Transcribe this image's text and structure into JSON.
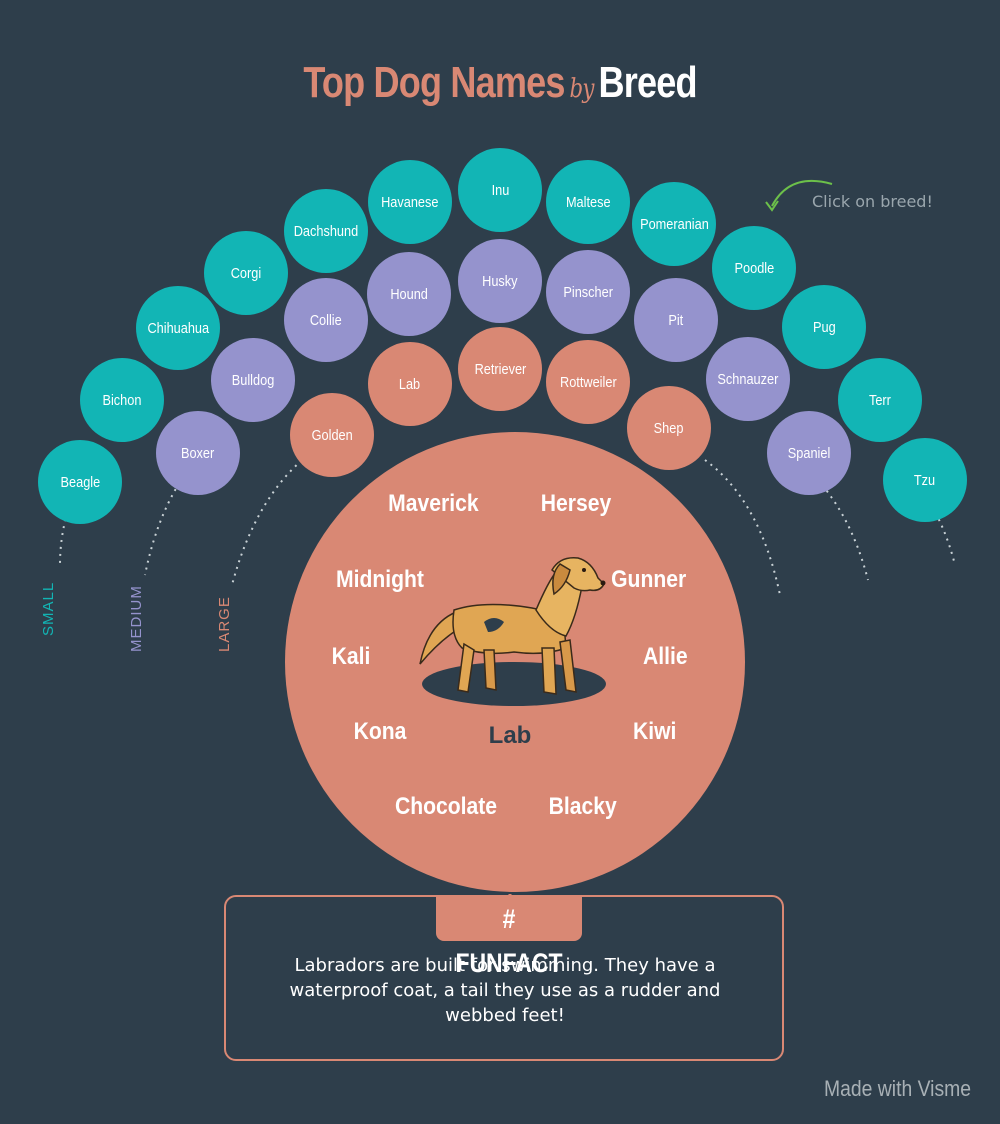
{
  "title": {
    "part1": "Top Dog Names",
    "part2": "by",
    "part3": "Breed"
  },
  "hint": "Click on breed!",
  "colors": {
    "small": "#12b5b5",
    "medium": "#9593cd",
    "large": "#d98874",
    "background": "#2e3e4b"
  },
  "size_labels": {
    "small": "SMALL",
    "medium": "MEDIUM",
    "large": "LARGE"
  },
  "breeds": {
    "small": [
      "Beagle",
      "Bichon",
      "Chihuahua",
      "Corgi",
      "Dachshund",
      "Havanese",
      "Inu",
      "Maltese",
      "Pomeranian",
      "Poodle",
      "Pug",
      "Terr",
      "Tzu"
    ],
    "medium": [
      "Boxer",
      "Bulldog",
      "Collie",
      "Hound",
      "Husky",
      "Pinscher",
      "Pit",
      "Schnauzer",
      "Spaniel"
    ],
    "large": [
      "Golden",
      "Lab",
      "Retriever",
      "Rottweiler",
      "Shep"
    ]
  },
  "selected_breed": "Lab",
  "top_names": [
    "Maverick",
    "Hersey",
    "Midnight",
    "Gunner",
    "Kali",
    "Allie",
    "Kona",
    "Kiwi",
    "Chocolate",
    "Blacky"
  ],
  "funfact": {
    "tag": "# FUNFACT",
    "text": "Labradors are built for swimming. They have a waterproof coat, a tail they use as a rudder and webbed feet!"
  },
  "credit": "Made with Visme",
  "icons": {
    "dog": "dog-illustration",
    "arrow": "curved-arrow-icon"
  }
}
